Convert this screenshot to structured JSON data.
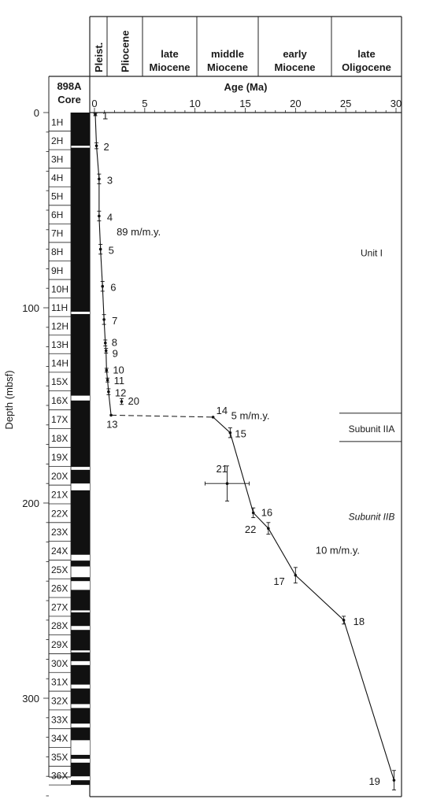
{
  "chart_data": {
    "type": "scatter",
    "title": "",
    "xlabel": "Age (Ma)",
    "ylabel": "Depth (mbsf)",
    "xlim": [
      0,
      30
    ],
    "ylim": [
      0,
      360
    ],
    "x_ticks": [
      0,
      5,
      10,
      15,
      20,
      25,
      30
    ],
    "y_ticks": [
      0,
      100,
      200,
      300
    ],
    "y_reversed": true,
    "core_header": [
      "898A",
      "Core"
    ],
    "cores": [
      {
        "name": "1H",
        "top": 0,
        "bottom": 9.5
      },
      {
        "name": "2H",
        "top": 9.5,
        "bottom": 19
      },
      {
        "name": "3H",
        "top": 19,
        "bottom": 28.5
      },
      {
        "name": "4H",
        "top": 28.5,
        "bottom": 38
      },
      {
        "name": "5H",
        "top": 38,
        "bottom": 47.5
      },
      {
        "name": "6H",
        "top": 47.5,
        "bottom": 57
      },
      {
        "name": "7H",
        "top": 57,
        "bottom": 66.5
      },
      {
        "name": "8H",
        "top": 66.5,
        "bottom": 76
      },
      {
        "name": "9H",
        "top": 76,
        "bottom": 85.5
      },
      {
        "name": "10H",
        "top": 85.5,
        "bottom": 95
      },
      {
        "name": "11H",
        "top": 95,
        "bottom": 104.5
      },
      {
        "name": "12H",
        "top": 104.5,
        "bottom": 114
      },
      {
        "name": "13H",
        "top": 114,
        "bottom": 123.5
      },
      {
        "name": "14H",
        "top": 123.5,
        "bottom": 133
      },
      {
        "name": "15X",
        "top": 133,
        "bottom": 142.6
      },
      {
        "name": "16X",
        "top": 142.6,
        "bottom": 152.3
      },
      {
        "name": "17X",
        "top": 152.3,
        "bottom": 161.9
      },
      {
        "name": "18X",
        "top": 161.9,
        "bottom": 171.5
      },
      {
        "name": "19X",
        "top": 171.5,
        "bottom": 181.2
      },
      {
        "name": "20X",
        "top": 181.2,
        "bottom": 190.8
      },
      {
        "name": "21X",
        "top": 190.8,
        "bottom": 200.4
      },
      {
        "name": "22X",
        "top": 200.4,
        "bottom": 210
      },
      {
        "name": "23X",
        "top": 210,
        "bottom": 219.6
      },
      {
        "name": "24X",
        "top": 219.6,
        "bottom": 229.2
      },
      {
        "name": "25X",
        "top": 229.2,
        "bottom": 238.8
      },
      {
        "name": "26X",
        "top": 238.8,
        "bottom": 248.4
      },
      {
        "name": "27X",
        "top": 248.4,
        "bottom": 258
      },
      {
        "name": "28X",
        "top": 258,
        "bottom": 267.6
      },
      {
        "name": "29X",
        "top": 267.6,
        "bottom": 277.2
      },
      {
        "name": "30X",
        "top": 277.2,
        "bottom": 286.8
      },
      {
        "name": "31X",
        "top": 286.8,
        "bottom": 296.4
      },
      {
        "name": "32X",
        "top": 296.4,
        "bottom": 306
      },
      {
        "name": "33X",
        "top": 306,
        "bottom": 315.6
      },
      {
        "name": "34X",
        "top": 315.6,
        "bottom": 325.2
      },
      {
        "name": "35X",
        "top": 325.2,
        "bottom": 334.8
      },
      {
        "name": "36X",
        "top": 334.8,
        "bottom": 344.4
      }
    ],
    "recovery_gaps": [
      [
        17,
        18
      ],
      [
        102,
        103.2
      ],
      [
        145,
        147.5
      ],
      [
        181.5,
        183
      ],
      [
        190,
        193.5
      ],
      [
        226.5,
        229.5
      ],
      [
        232.5,
        238
      ],
      [
        240,
        244.5
      ],
      [
        255,
        256
      ],
      [
        263,
        265
      ],
      [
        275.5,
        276.5
      ],
      [
        281,
        283
      ],
      [
        293,
        295
      ],
      [
        303,
        305
      ],
      [
        313,
        315
      ],
      [
        321.5,
        329
      ],
      [
        331,
        333
      ],
      [
        340,
        342
      ]
    ],
    "epochs": [
      {
        "name": [
          "Pleist."
        ],
        "start": 0,
        "end": 1.8,
        "vertical": true
      },
      {
        "name": [
          "Pliocene"
        ],
        "start": 1.8,
        "end": 5.3,
        "vertical": true
      },
      {
        "name": [
          "late",
          "Miocene"
        ],
        "start": 5.3,
        "end": 10.2
      },
      {
        "name": [
          "middle",
          "Miocene"
        ],
        "start": 10.2,
        "end": 16.4
      },
      {
        "name": [
          "early",
          "Miocene"
        ],
        "start": 16.4,
        "end": 23.3
      },
      {
        "name": [
          "late",
          "Oligocene"
        ],
        "start": 23.3,
        "end": 30.5
      }
    ],
    "datums": [
      {
        "label": "1",
        "x": 0.08,
        "y": 1,
        "yerr": 0.6
      },
      {
        "label": "2",
        "x": 0.2,
        "y": 17,
        "yerr": 1.5
      },
      {
        "label": "3",
        "x": 0.46,
        "y": 34,
        "yerr": 2.5
      },
      {
        "label": "4",
        "x": 0.46,
        "y": 53,
        "yerr": 2.5
      },
      {
        "label": "5",
        "x": 0.6,
        "y": 70,
        "yerr": 2.5
      },
      {
        "label": "6",
        "x": 0.8,
        "y": 89,
        "yerr": 2.5
      },
      {
        "label": "7",
        "x": 0.95,
        "y": 106,
        "yerr": 2.5
      },
      {
        "label": "8",
        "x": 1.08,
        "y": 118,
        "yerr": 1.5
      },
      {
        "label": "9",
        "x": 1.15,
        "y": 122,
        "yerr": 1.2
      },
      {
        "label": "10",
        "x": 1.2,
        "y": 132,
        "yerr": 1
      },
      {
        "label": "11",
        "x": 1.3,
        "y": 137,
        "yerr": 1
      },
      {
        "label": "12",
        "x": 1.4,
        "y": 143,
        "yerr": 1.5
      },
      {
        "label": "13",
        "x": 1.65,
        "y": 155,
        "yerr": 0
      },
      {
        "label": "14",
        "x": 11.8,
        "y": 156,
        "yerr": 0
      },
      {
        "label": "15",
        "x": 13.5,
        "y": 164,
        "yerr": 2.5
      },
      {
        "label": "16",
        "x": 15.8,
        "y": 205,
        "yerr": 2.5
      },
      {
        "label": "17",
        "x": 20.0,
        "y": 237,
        "yerr": 4
      },
      {
        "label": "18",
        "x": 24.8,
        "y": 260,
        "yerr": 2
      },
      {
        "label": "19",
        "x": 29.8,
        "y": 342,
        "yerr": 5
      },
      {
        "label": "20",
        "x": 2.7,
        "y": 148,
        "yerr": 1.5
      },
      {
        "label": "21",
        "x": 13.2,
        "y": 190,
        "yerr": 9,
        "xerr": 2.2
      },
      {
        "label": "22",
        "x": 17.3,
        "y": 213,
        "yerr": 3
      }
    ],
    "trend_line": {
      "x": [
        0.08,
        0.2,
        0.46,
        0.46,
        0.6,
        0.8,
        0.95,
        1.08,
        1.15,
        1.2,
        1.3,
        1.4,
        1.65
      ],
      "y": [
        1,
        17,
        34,
        53,
        70,
        89,
        106,
        118,
        122,
        132,
        137,
        143,
        155
      ]
    },
    "hiatus_line": {
      "x": [
        1.65,
        11.8
      ],
      "y": [
        155,
        156
      ]
    },
    "trend_line_2": {
      "x": [
        11.8,
        13.5,
        15.8,
        17.3,
        20.0,
        24.8,
        29.8
      ],
      "y": [
        156,
        164,
        205,
        213,
        237,
        260,
        342
      ]
    },
    "annotations": [
      {
        "text": "89 m/m.y.",
        "x": 2.2,
        "y": 63
      },
      {
        "text": "5 m/m.y.",
        "x": 13.6,
        "y": 157
      },
      {
        "text": "10 m/m.y.",
        "x": 22.0,
        "y": 226
      }
    ],
    "units": [
      {
        "text": "Unit I",
        "y": 72,
        "italic": false
      },
      {
        "text": "Subunit IIA",
        "y": 162,
        "italic": false
      },
      {
        "text": "Subunit IIB",
        "y": 207,
        "italic": true
      }
    ],
    "unit_boundaries": [
      154,
      168.5
    ]
  }
}
